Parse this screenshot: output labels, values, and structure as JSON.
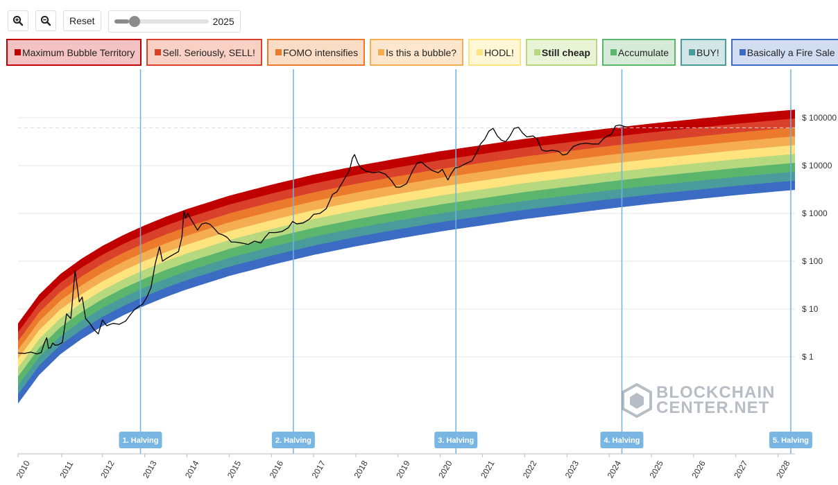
{
  "toolbar": {
    "zoom_in_icon": "zoom-in-icon",
    "zoom_out_icon": "zoom-out-icon",
    "reset_label": "Reset",
    "year_value": "2025",
    "slider_fraction": 0.16
  },
  "legend": [
    {
      "label": "Maximum Bubble Territory",
      "color": "#c00000",
      "bg": "#f4c2c2",
      "bold": false
    },
    {
      "label": "Sell. Seriously, SELL!",
      "color": "#d9412a",
      "bg": "#f9d0c4",
      "bold": false
    },
    {
      "label": "FOMO intensifies",
      "color": "#ec7a2d",
      "bg": "#fbdcc5",
      "bold": false
    },
    {
      "label": "Is this a bubble?",
      "color": "#f5ad52",
      "bg": "#fde6cc",
      "bold": false
    },
    {
      "label": "HODL!",
      "color": "#fde47f",
      "bg": "#fff7d6",
      "bold": false
    },
    {
      "label": "Still cheap",
      "color": "#b6d87f",
      "bg": "#e9f4d6",
      "bold": true
    },
    {
      "label": "Accumulate",
      "color": "#5bb56c",
      "bg": "#d5ebd7",
      "bold": false
    },
    {
      "label": "BUY!",
      "color": "#4a9c9c",
      "bg": "#d2e6e6",
      "bold": false
    },
    {
      "label": "Basically a Fire Sale",
      "color": "#3c6bc3",
      "bg": "#d3ddf1",
      "bold": false
    }
  ],
  "chart_data": {
    "type": "line",
    "title": "",
    "y_scale": "log",
    "x_ticks": [
      "2010",
      "2011",
      "2012",
      "2013",
      "2014",
      "2015",
      "2016",
      "2017",
      "2018",
      "2019",
      "2020",
      "2021",
      "2022",
      "2023",
      "2024",
      "2025",
      "2026",
      "2027",
      "2028"
    ],
    "y_ticks": [
      {
        "value": 1,
        "label": "$ 1"
      },
      {
        "value": 10,
        "label": "$ 10"
      },
      {
        "value": 100,
        "label": "$ 100"
      },
      {
        "value": 1000,
        "label": "$ 1000"
      },
      {
        "value": 10000,
        "label": "$ 10000"
      },
      {
        "value": 100000,
        "label": "$ 100000"
      }
    ],
    "xlim": [
      2010.0,
      2028.4
    ],
    "ylim_log10": [
      -2.0,
      10.0
    ],
    "halvings": [
      {
        "label": "1. Halving",
        "date": 2012.9
      },
      {
        "label": "2. Halving",
        "date": 2016.52
      },
      {
        "label": "3. Halving",
        "date": 2020.37
      },
      {
        "label": "4. Halving",
        "date": 2024.3
      },
      {
        "label": "5. Halving",
        "date": 2028.3
      }
    ],
    "current_price_line": 62000,
    "bands_log10_top": [
      [
        2010.0,
        0.7
      ],
      [
        2010.5,
        1.3
      ],
      [
        2011.0,
        1.73
      ],
      [
        2011.5,
        2.05
      ],
      [
        2012.0,
        2.32
      ],
      [
        2012.5,
        2.55
      ],
      [
        2013.0,
        2.75
      ],
      [
        2013.5,
        2.93
      ],
      [
        2014.0,
        3.09
      ],
      [
        2015.0,
        3.37
      ],
      [
        2016.0,
        3.6
      ],
      [
        2017.0,
        3.81
      ],
      [
        2018.0,
        3.99
      ],
      [
        2019.0,
        4.15
      ],
      [
        2020.0,
        4.3
      ],
      [
        2021.0,
        4.43
      ],
      [
        2022.0,
        4.56
      ],
      [
        2023.0,
        4.67
      ],
      [
        2024.0,
        4.78
      ],
      [
        2025.0,
        4.88
      ],
      [
        2026.0,
        4.97
      ],
      [
        2027.0,
        5.06
      ],
      [
        2028.0,
        5.14
      ],
      [
        2028.4,
        5.17
      ]
    ],
    "band_total_width_log10": 1.67,
    "price_series": [
      [
        2010.0,
        0.08
      ],
      [
        2010.15,
        0.07
      ],
      [
        2010.3,
        0.1
      ],
      [
        2010.45,
        0.06
      ],
      [
        2010.55,
        0.09
      ],
      [
        2010.62,
        0.28
      ],
      [
        2010.68,
        0.4
      ],
      [
        2010.72,
        0.18
      ],
      [
        2010.77,
        0.19
      ],
      [
        2010.82,
        0.29
      ],
      [
        2010.88,
        0.24
      ],
      [
        2010.95,
        0.25
      ],
      [
        2011.05,
        0.3
      ],
      [
        2011.15,
        0.9
      ],
      [
        2011.25,
        0.8
      ],
      [
        2011.35,
        1.8
      ],
      [
        2011.45,
        1.15
      ],
      [
        2011.52,
        1.25
      ],
      [
        2011.6,
        0.8
      ],
      [
        2011.7,
        0.7
      ],
      [
        2011.8,
        0.57
      ],
      [
        2011.9,
        0.48
      ],
      [
        2012.0,
        0.77
      ],
      [
        2012.1,
        0.65
      ],
      [
        2012.25,
        0.7
      ],
      [
        2012.4,
        0.68
      ],
      [
        2012.55,
        0.75
      ],
      [
        2012.65,
        0.87
      ],
      [
        2012.75,
        0.98
      ],
      [
        2012.85,
        1.05
      ],
      [
        2012.95,
        1.1
      ],
      [
        2013.05,
        1.25
      ],
      [
        2013.15,
        1.45
      ],
      [
        2013.25,
        1.95
      ],
      [
        2013.35,
        2.3
      ],
      [
        2013.42,
        2.0
      ],
      [
        2013.5,
        2.05
      ],
      [
        2013.6,
        2.1
      ],
      [
        2013.7,
        2.15
      ],
      [
        2013.8,
        2.2
      ],
      [
        2013.88,
        2.5
      ],
      [
        2013.93,
        3.05
      ],
      [
        2013.97,
        2.9
      ],
      [
        2014.02,
        3.0
      ],
      [
        2014.08,
        2.9
      ],
      [
        2014.15,
        2.8
      ],
      [
        2014.25,
        2.65
      ],
      [
        2014.35,
        2.78
      ],
      [
        2014.45,
        2.8
      ],
      [
        2014.55,
        2.77
      ],
      [
        2014.65,
        2.68
      ],
      [
        2014.75,
        2.58
      ],
      [
        2014.85,
        2.55
      ],
      [
        2014.95,
        2.5
      ],
      [
        2015.05,
        2.4
      ],
      [
        2015.15,
        2.4
      ],
      [
        2015.3,
        2.38
      ],
      [
        2015.45,
        2.35
      ],
      [
        2015.6,
        2.42
      ],
      [
        2015.75,
        2.38
      ],
      [
        2015.85,
        2.5
      ],
      [
        2015.95,
        2.6
      ],
      [
        2016.1,
        2.6
      ],
      [
        2016.25,
        2.62
      ],
      [
        2016.4,
        2.7
      ],
      [
        2016.5,
        2.83
      ],
      [
        2016.6,
        2.78
      ],
      [
        2016.75,
        2.8
      ],
      [
        2016.9,
        2.88
      ],
      [
        2017.0,
        2.98
      ],
      [
        2017.15,
        3.0
      ],
      [
        2017.3,
        3.1
      ],
      [
        2017.45,
        3.4
      ],
      [
        2017.55,
        3.45
      ],
      [
        2017.65,
        3.6
      ],
      [
        2017.75,
        3.75
      ],
      [
        2017.85,
        3.9
      ],
      [
        2017.92,
        4.16
      ],
      [
        2017.97,
        4.23
      ],
      [
        2018.05,
        4.05
      ],
      [
        2018.12,
        3.95
      ],
      [
        2018.25,
        3.88
      ],
      [
        2018.4,
        3.85
      ],
      [
        2018.55,
        3.87
      ],
      [
        2018.7,
        3.82
      ],
      [
        2018.85,
        3.68
      ],
      [
        2018.95,
        3.55
      ],
      [
        2019.05,
        3.55
      ],
      [
        2019.2,
        3.62
      ],
      [
        2019.35,
        3.9
      ],
      [
        2019.45,
        4.05
      ],
      [
        2019.55,
        4.08
      ],
      [
        2019.65,
        4.0
      ],
      [
        2019.8,
        3.9
      ],
      [
        2019.95,
        3.85
      ],
      [
        2020.05,
        3.92
      ],
      [
        2020.18,
        3.7
      ],
      [
        2020.25,
        3.82
      ],
      [
        2020.35,
        3.95
      ],
      [
        2020.45,
        3.97
      ],
      [
        2020.6,
        4.04
      ],
      [
        2020.75,
        4.1
      ],
      [
        2020.85,
        4.25
      ],
      [
        2020.95,
        4.45
      ],
      [
        2021.05,
        4.55
      ],
      [
        2021.15,
        4.72
      ],
      [
        2021.25,
        4.78
      ],
      [
        2021.35,
        4.62
      ],
      [
        2021.45,
        4.53
      ],
      [
        2021.55,
        4.5
      ],
      [
        2021.65,
        4.62
      ],
      [
        2021.75,
        4.78
      ],
      [
        2021.85,
        4.8
      ],
      [
        2021.95,
        4.68
      ],
      [
        2022.05,
        4.6
      ],
      [
        2022.2,
        4.62
      ],
      [
        2022.3,
        4.55
      ],
      [
        2022.4,
        4.33
      ],
      [
        2022.5,
        4.3
      ],
      [
        2022.65,
        4.32
      ],
      [
        2022.8,
        4.3
      ],
      [
        2022.9,
        4.22
      ],
      [
        2023.0,
        4.24
      ],
      [
        2023.15,
        4.4
      ],
      [
        2023.3,
        4.45
      ],
      [
        2023.45,
        4.47
      ],
      [
        2023.6,
        4.45
      ],
      [
        2023.75,
        4.45
      ],
      [
        2023.85,
        4.55
      ],
      [
        2023.95,
        4.62
      ],
      [
        2024.05,
        4.65
      ],
      [
        2024.15,
        4.83
      ],
      [
        2024.25,
        4.85
      ],
      [
        2024.35,
        4.82
      ],
      [
        2024.42,
        4.8
      ]
    ]
  },
  "watermark": {
    "line1": "BLOCKCHAIN",
    "line2": "CENTER",
    "line3": ".NET"
  }
}
